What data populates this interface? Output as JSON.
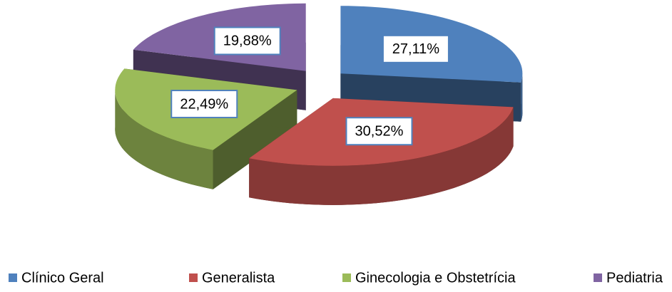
{
  "chart_data": {
    "type": "pie3d",
    "categories": [
      "Clínico Geral",
      "Generalista",
      "Ginecologia e Obstetrícia",
      "Pediatria"
    ],
    "values": [
      27.11,
      30.52,
      22.49,
      19.88
    ],
    "value_labels": [
      "27,11%",
      "30,52%",
      "22,49%",
      "19,88%"
    ],
    "colors": [
      "#4f81bd",
      "#c0504d",
      "#9bbb59",
      "#8064a2"
    ],
    "legend": "bottom"
  }
}
